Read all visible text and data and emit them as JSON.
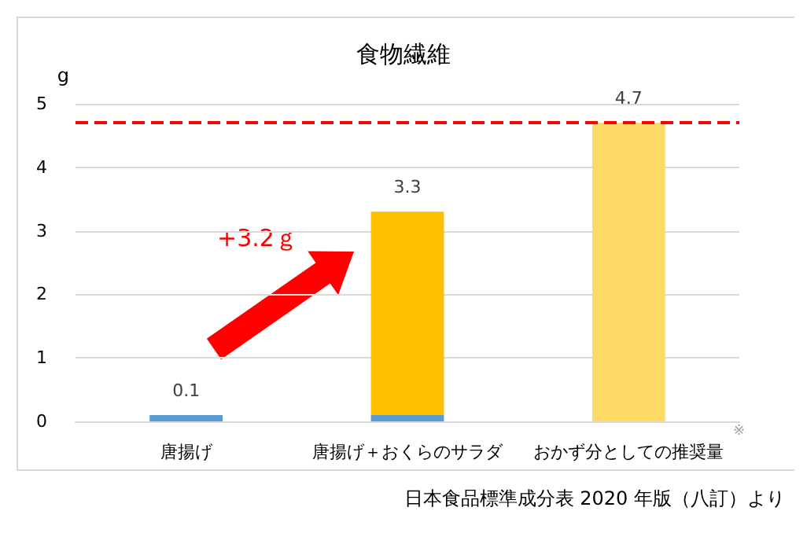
{
  "chart_data": {
    "type": "bar",
    "title": "食物繊維",
    "ylabel": "g",
    "categories": [
      "唐揚げ",
      "唐揚げ＋おくらのサラダ",
      "おかず分としての推奨量"
    ],
    "stacked": true,
    "series": [
      {
        "color": "#5b9bd5",
        "values": [
          0.1,
          0.1,
          null
        ]
      },
      {
        "color": "#ffc000",
        "values": [
          null,
          3.2,
          null
        ]
      },
      {
        "color": "#ffd966",
        "values": [
          null,
          null,
          4.7
        ]
      }
    ],
    "totals": [
      "0.1",
      "3.3",
      "4.7"
    ],
    "ylim": [
      0,
      5
    ],
    "yticks": [
      0,
      1,
      2,
      3,
      4,
      5
    ],
    "grid": "y",
    "ref_lines": [
      {
        "axis": "y",
        "value": 4.7,
        "color": "#ff0000",
        "line_style": "dashed"
      }
    ],
    "annotations": [
      "+3.2ｇ",
      "※",
      "日本食品標準成分表 2020 年版（八訂）より"
    ]
  }
}
